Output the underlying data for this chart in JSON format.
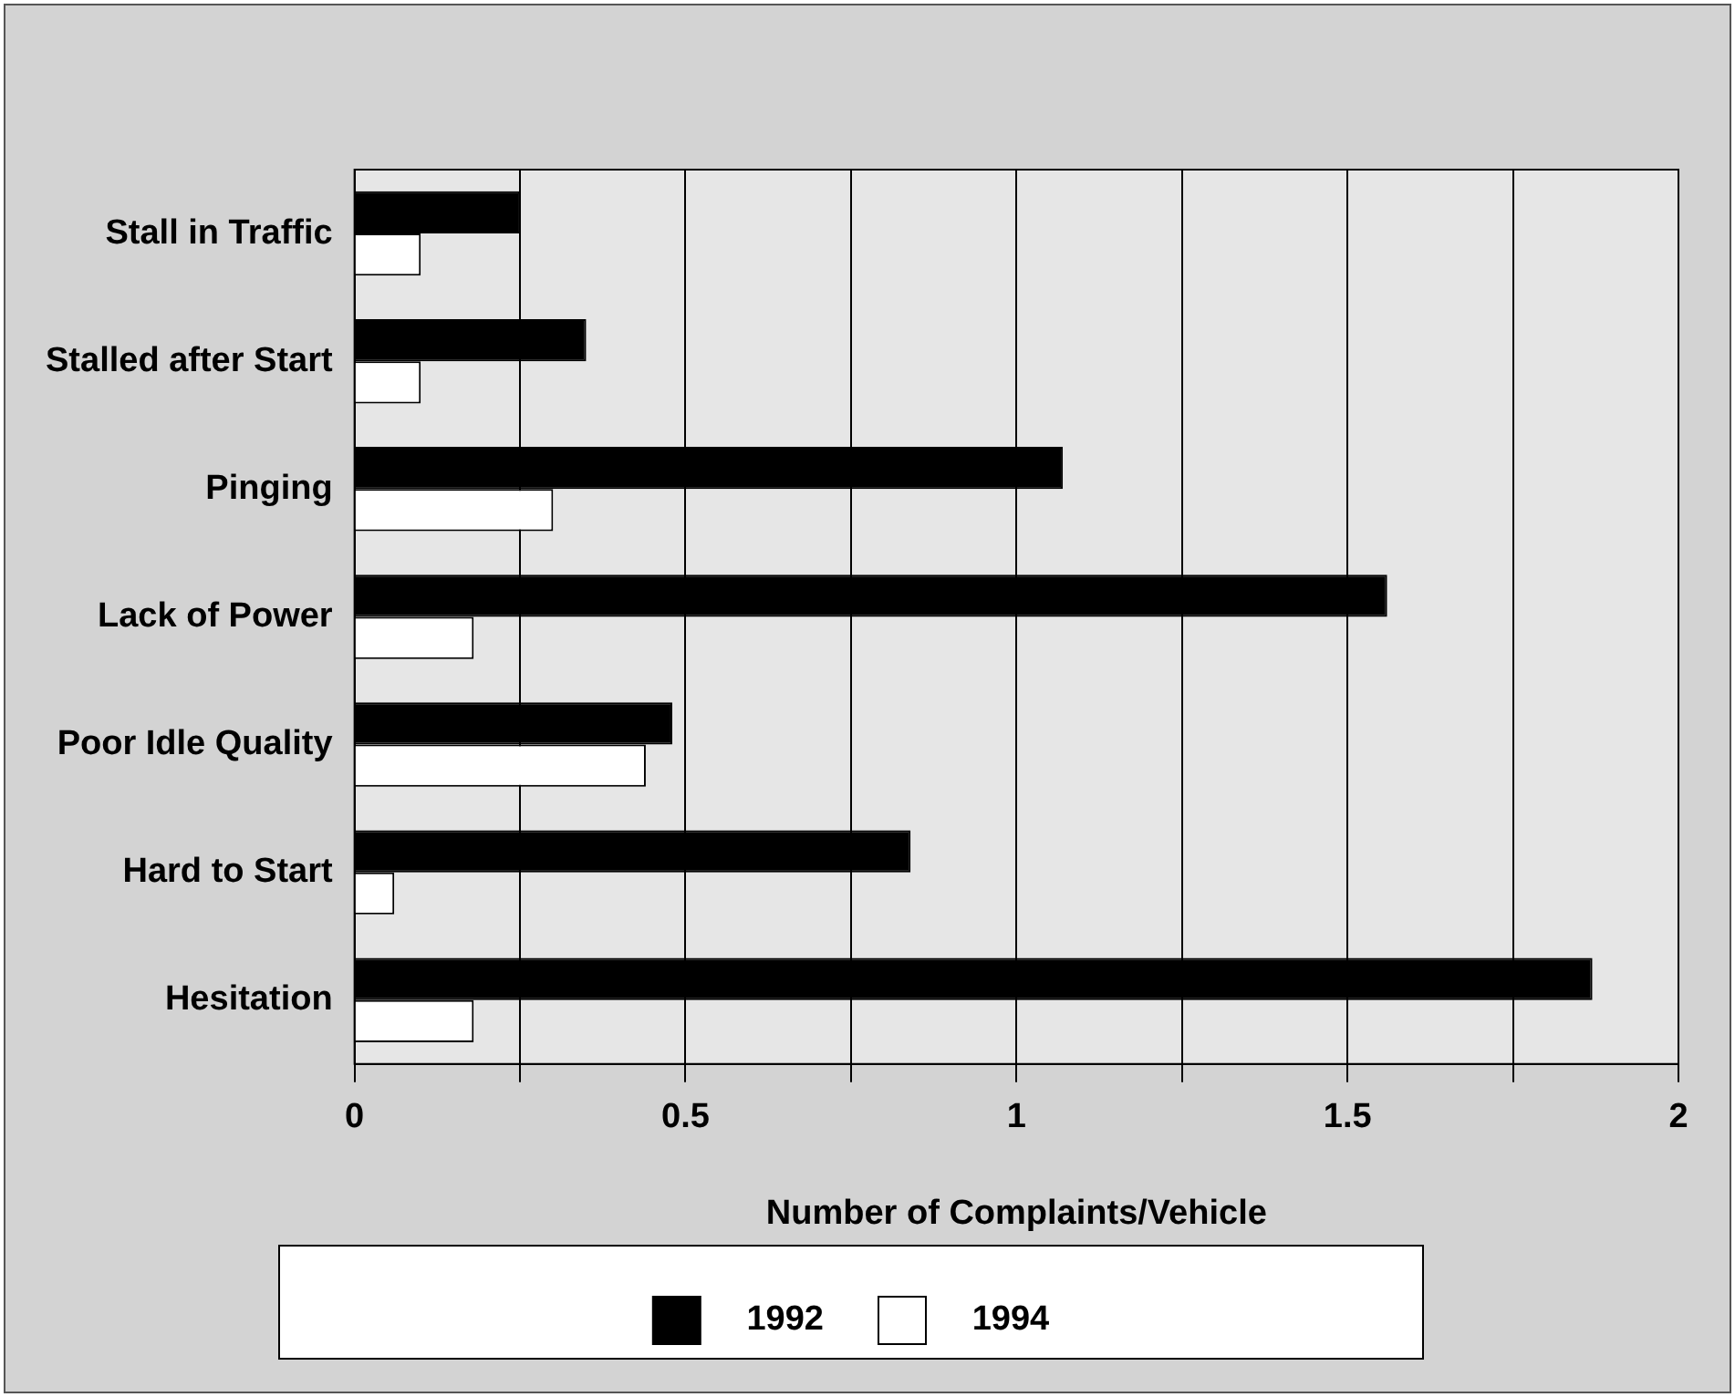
{
  "chart_data": {
    "type": "bar",
    "orientation": "horizontal",
    "categories": [
      "Stall in Traffic",
      "Stalled after Start",
      "Pinging",
      "Lack of Power",
      "Poor Idle Quality",
      "Hard to Start",
      "Hesitation"
    ],
    "series": [
      {
        "name": "1992",
        "color": "#000000",
        "values": [
          0.25,
          0.35,
          1.07,
          1.56,
          0.48,
          0.84,
          1.87
        ]
      },
      {
        "name": "1994",
        "color": "#ffffff",
        "values": [
          0.1,
          0.1,
          0.3,
          0.18,
          0.44,
          0.06,
          0.18
        ]
      }
    ],
    "xlabel": "Number of Complaints/Vehicle",
    "xlim": [
      0,
      2
    ],
    "xticks": [
      0,
      {
        "value": 0.25,
        "label": null
      },
      0.5,
      {
        "value": 0.75,
        "label": null
      },
      1,
      {
        "value": 1.25,
        "label": null
      },
      1.5,
      {
        "value": 1.75,
        "label": null
      },
      2
    ],
    "grid": "x",
    "legend": "bottom"
  }
}
